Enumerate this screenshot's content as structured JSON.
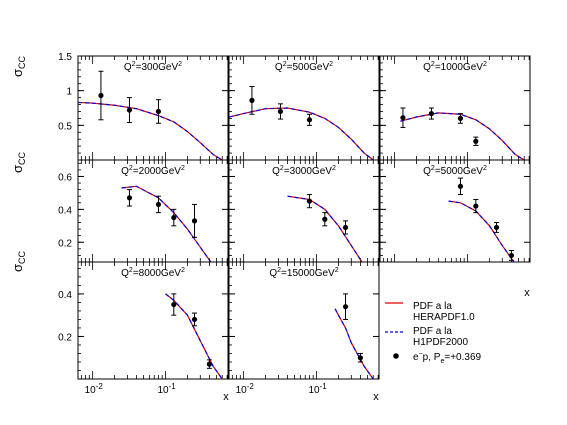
{
  "colors": {
    "herapdf": "#dd0000",
    "h1pdf": "#0000dd",
    "points": "#000000",
    "frame": "#000000",
    "background": "#ffffff"
  },
  "axis_labels": {
    "y_symbol": "σ",
    "y_subscript": "CC",
    "x": "x"
  },
  "x_ticks": [
    {
      "value": 0.01,
      "base": "10",
      "exp": "-2"
    },
    {
      "value": 0.1,
      "base": "10",
      "exp": "-1"
    }
  ],
  "legend": [
    {
      "key": "herapdf",
      "style": "solid-line",
      "lines": [
        "PDF a la",
        "HERAPDF1.0"
      ]
    },
    {
      "key": "h1pdf",
      "style": "dashed-line",
      "lines": [
        "PDF a la",
        "H1PDF2000"
      ]
    },
    {
      "key": "points",
      "style": "marker",
      "main": "e",
      "sup": "−",
      "mid": "p, P",
      "sub": "e",
      "tail": "=+0.369"
    }
  ],
  "chart_data": [
    {
      "type": "line",
      "q2": "300",
      "title_prefix": "Q",
      "title_sup1": "2",
      "title_mid": "=300GeV",
      "title_sup2": "2",
      "xlim": [
        0.0063,
        0.72
      ],
      "ylim": [
        0,
        1.5
      ],
      "ylabel": "σCC",
      "yticks": [
        0.5,
        1,
        1.5
      ],
      "ytick_labels": [
        "0.5",
        "1",
        "1.5"
      ],
      "theory": {
        "x": [
          0.0063,
          0.01,
          0.02,
          0.04,
          0.08,
          0.13,
          0.2,
          0.3,
          0.45,
          0.6
        ],
        "y": [
          0.83,
          0.82,
          0.79,
          0.74,
          0.64,
          0.55,
          0.41,
          0.25,
          0.08,
          0.0
        ]
      },
      "points": [
        {
          "x": 0.013,
          "y": 0.93,
          "err": 0.35
        },
        {
          "x": 0.032,
          "y": 0.72,
          "err": 0.18
        },
        {
          "x": 0.08,
          "y": 0.7,
          "err": 0.17
        }
      ]
    },
    {
      "type": "line",
      "q2": "500",
      "title_prefix": "Q",
      "title_sup1": "2",
      "title_mid": "=500GeV",
      "title_sup2": "2",
      "xlim": [
        0.0063,
        0.72
      ],
      "ylim": [
        0,
        1.5
      ],
      "yticks": [
        0.5,
        1,
        1.5
      ],
      "ytick_labels": [],
      "theory": {
        "x": [
          0.0063,
          0.01,
          0.02,
          0.04,
          0.08,
          0.13,
          0.2,
          0.3,
          0.45,
          0.6
        ],
        "y": [
          0.62,
          0.67,
          0.74,
          0.75,
          0.69,
          0.6,
          0.47,
          0.3,
          0.1,
          0.0
        ]
      },
      "points": [
        {
          "x": 0.013,
          "y": 0.86,
          "err": 0.2
        },
        {
          "x": 0.032,
          "y": 0.7,
          "err": 0.11
        },
        {
          "x": 0.08,
          "y": 0.58,
          "err": 0.08
        }
      ]
    },
    {
      "type": "line",
      "q2": "1000",
      "title_prefix": "Q",
      "title_sup1": "2",
      "title_mid": "=1000GeV",
      "title_sup2": "2",
      "xlim": [
        0.0063,
        0.72
      ],
      "ylim": [
        0,
        1.5
      ],
      "yticks": [
        0.5,
        1,
        1.5
      ],
      "ytick_labels": [],
      "theory": {
        "x": [
          0.012,
          0.02,
          0.04,
          0.08,
          0.13,
          0.2,
          0.3,
          0.45,
          0.6
        ],
        "y": [
          0.56,
          0.62,
          0.68,
          0.66,
          0.58,
          0.45,
          0.28,
          0.08,
          0.0
        ]
      },
      "points": [
        {
          "x": 0.013,
          "y": 0.61,
          "err": 0.14
        },
        {
          "x": 0.032,
          "y": 0.67,
          "err": 0.08
        },
        {
          "x": 0.08,
          "y": 0.6,
          "err": 0.07
        },
        {
          "x": 0.13,
          "y": 0.27,
          "err": 0.06
        }
      ]
    },
    {
      "type": "line",
      "q2": "2000",
      "title_prefix": "Q",
      "title_sup1": "2",
      "title_mid": "=2000GeV",
      "title_sup2": "2",
      "xlim": [
        0.0063,
        0.72
      ],
      "ylim": [
        0.08,
        0.7
      ],
      "yticks": [
        0.2,
        0.4,
        0.6
      ],
      "ytick_labels": [
        "0.2",
        "0.4",
        "0.6"
      ],
      "theory": {
        "x": [
          0.025,
          0.04,
          0.08,
          0.13,
          0.2,
          0.3,
          0.45,
          0.6
        ],
        "y": [
          0.53,
          0.54,
          0.47,
          0.38,
          0.28,
          0.17,
          0.06,
          0.0
        ]
      },
      "points": [
        {
          "x": 0.032,
          "y": 0.47,
          "err": 0.05
        },
        {
          "x": 0.08,
          "y": 0.43,
          "err": 0.05
        },
        {
          "x": 0.13,
          "y": 0.35,
          "err": 0.05
        },
        {
          "x": 0.25,
          "y": 0.33,
          "err": 0.1
        }
      ]
    },
    {
      "type": "line",
      "q2": "3000",
      "title_prefix": "Q",
      "title_sup1": "2",
      "title_mid": "=3000GeV",
      "title_sup2": "2",
      "xlim": [
        0.0063,
        0.72
      ],
      "ylim": [
        0.08,
        0.7
      ],
      "yticks": [
        0.2,
        0.4,
        0.6
      ],
      "ytick_labels": [],
      "theory": {
        "x": [
          0.04,
          0.08,
          0.13,
          0.2,
          0.3,
          0.45,
          0.6
        ],
        "y": [
          0.48,
          0.46,
          0.4,
          0.3,
          0.18,
          0.06,
          0.0
        ]
      },
      "points": [
        {
          "x": 0.08,
          "y": 0.45,
          "err": 0.04
        },
        {
          "x": 0.13,
          "y": 0.34,
          "err": 0.04
        },
        {
          "x": 0.25,
          "y": 0.29,
          "err": 0.04
        }
      ]
    },
    {
      "type": "line",
      "q2": "5000",
      "title_prefix": "Q",
      "title_sup1": "2",
      "title_mid": "=5000GeV",
      "title_sup2": "2",
      "xlim": [
        0.0063,
        0.72
      ],
      "ylim": [
        0.08,
        0.7
      ],
      "yticks": [
        0.2,
        0.4,
        0.6
      ],
      "ytick_labels": [],
      "theory": {
        "x": [
          0.055,
          0.08,
          0.13,
          0.2,
          0.3,
          0.45,
          0.6
        ],
        "y": [
          0.45,
          0.44,
          0.39,
          0.3,
          0.18,
          0.07,
          0.0
        ]
      },
      "points": [
        {
          "x": 0.08,
          "y": 0.54,
          "err": 0.05
        },
        {
          "x": 0.13,
          "y": 0.42,
          "err": 0.04
        },
        {
          "x": 0.25,
          "y": 0.29,
          "err": 0.03
        },
        {
          "x": 0.4,
          "y": 0.12,
          "err": 0.03
        }
      ]
    },
    {
      "type": "line",
      "q2": "8000",
      "title_prefix": "Q",
      "title_sup1": "2",
      "title_mid": "=8000GeV",
      "title_sup2": "2",
      "xlim": [
        0.0063,
        0.72
      ],
      "ylim": [
        0,
        0.55
      ],
      "yticks": [
        0.2,
        0.4
      ],
      "ytick_labels": [
        "0.2",
        "0.4"
      ],
      "xtick_labels": true,
      "theory": {
        "x": [
          0.1,
          0.13,
          0.2,
          0.3,
          0.45,
          0.6
        ],
        "y": [
          0.4,
          0.37,
          0.3,
          0.18,
          0.06,
          0.0
        ]
      },
      "points": [
        {
          "x": 0.13,
          "y": 0.35,
          "err": 0.05
        },
        {
          "x": 0.25,
          "y": 0.28,
          "err": 0.03
        },
        {
          "x": 0.4,
          "y": 0.07,
          "err": 0.02
        }
      ]
    },
    {
      "type": "line",
      "q2": "15000",
      "title_prefix": "Q",
      "title_sup1": "2",
      "title_mid": "=15000GeV",
      "title_sup2": "2",
      "xlim": [
        0.0063,
        0.72
      ],
      "ylim": [
        0,
        0.55
      ],
      "yticks": [
        0.2,
        0.4
      ],
      "ytick_labels": [],
      "xtick_labels": true,
      "theory": {
        "x": [
          0.18,
          0.2,
          0.25,
          0.3,
          0.45,
          0.6
        ],
        "y": [
          0.33,
          0.3,
          0.24,
          0.17,
          0.06,
          0.0
        ]
      },
      "points": [
        {
          "x": 0.25,
          "y": 0.34,
          "err": 0.06
        },
        {
          "x": 0.4,
          "y": 0.1,
          "err": 0.02
        }
      ]
    }
  ]
}
